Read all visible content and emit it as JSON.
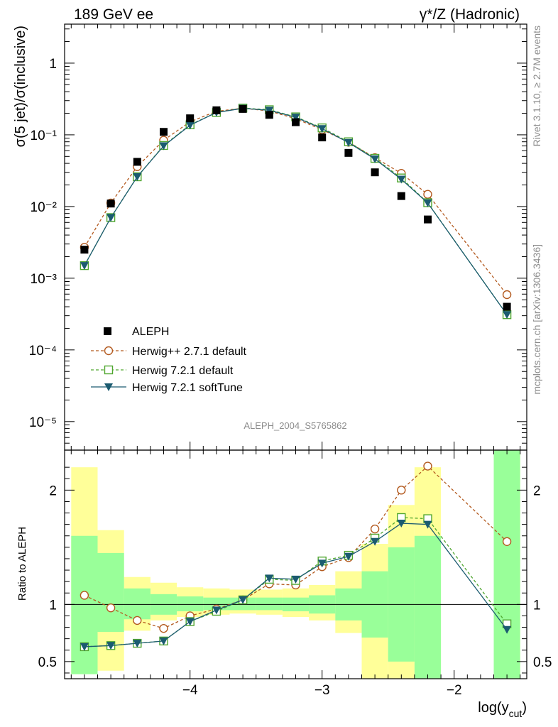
{
  "header": {
    "left": "189 GeV ee",
    "right": "γ*/Z (Hadronic)"
  },
  "side_text": {
    "rivet": "Rivet 3.1.10, ≥ 2.7M events",
    "mcplots": "mcplots.cern.ch [arXiv:1306.3436]"
  },
  "watermark": "ALEPH_2004_S5765862",
  "chart_data": {
    "type": "line",
    "title": "",
    "xlabel": "log(y_cut)",
    "ylabel": "σ(5 jet)/σ(inclusive)",
    "ratio_ylabel": "Ratio to ALEPH",
    "xlim": [
      -4.95,
      -1.45
    ],
    "ylim": [
      4e-06,
      3.5
    ],
    "ylog": true,
    "ratio_ylim": [
      0.35,
      2.35
    ],
    "legend_position": "lower-left",
    "x_ticks": [
      "−4",
      "−3",
      "−2"
    ],
    "y_ticks": [
      "10⁻⁵",
      "10⁻⁴",
      "10⁻³",
      "10⁻²",
      "10⁻¹",
      "1"
    ],
    "ratio_ticks": [
      "0.5",
      "1",
      "2"
    ],
    "x": [
      -4.8,
      -4.6,
      -4.4,
      -4.2,
      -4.0,
      -3.8,
      -3.6,
      -3.4,
      -3.2,
      -3.0,
      -2.8,
      -2.6,
      -2.4,
      -2.2,
      -1.6
    ],
    "series": [
      {
        "name": "ALEPH",
        "style": "data",
        "color": "#000000",
        "values": [
          0.0025,
          0.011,
          0.042,
          0.11,
          0.17,
          0.22,
          0.23,
          0.19,
          0.15,
          0.092,
          0.056,
          0.03,
          0.014,
          0.0066,
          0.0004
        ]
      },
      {
        "name": "Herwig++ 2.7.1 default",
        "style": "circle-dashed",
        "color": "#b35a1f",
        "values": [
          0.0027,
          0.0112,
          0.036,
          0.084,
          0.152,
          0.213,
          0.235,
          0.215,
          0.168,
          0.118,
          0.079,
          0.048,
          0.029,
          0.0148,
          0.00059
        ],
        "ratio": [
          1.08,
          0.97,
          0.86,
          0.79,
          0.9,
          0.96,
          1.04,
          1.18,
          1.17,
          1.33,
          1.41,
          1.66,
          2.0,
          2.21,
          1.55
        ]
      },
      {
        "name": "Herwig 7.2.1 default",
        "style": "square-dashed",
        "color": "#4fa62f",
        "values": [
          0.0015,
          0.007,
          0.026,
          0.071,
          0.138,
          0.205,
          0.236,
          0.224,
          0.178,
          0.125,
          0.08,
          0.047,
          0.025,
          0.0113,
          0.00031
        ],
        "ratio": [
          0.63,
          0.64,
          0.66,
          0.68,
          0.85,
          0.94,
          1.04,
          1.22,
          1.21,
          1.38,
          1.43,
          1.58,
          1.76,
          1.75,
          0.83
        ]
      },
      {
        "name": "Herwig 7.2.1 softTune",
        "style": "triangle-solid",
        "color": "#1b5b70",
        "values": [
          0.0015,
          0.007,
          0.026,
          0.07,
          0.136,
          0.205,
          0.234,
          0.22,
          0.176,
          0.122,
          0.078,
          0.046,
          0.024,
          0.0112,
          0.00031
        ],
        "ratio": [
          0.63,
          0.64,
          0.66,
          0.68,
          0.85,
          0.95,
          1.04,
          1.23,
          1.22,
          1.36,
          1.42,
          1.55,
          1.71,
          1.7,
          0.78
        ]
      }
    ],
    "ratio_bands": [
      {
        "x0": -4.9,
        "x1": -4.7,
        "yellow": [
          0.39,
          2.2
        ],
        "green": [
          0.39,
          1.6
        ]
      },
      {
        "x0": -4.7,
        "x1": -4.5,
        "yellow": [
          0.42,
          1.65
        ],
        "green": [
          0.76,
          1.45
        ]
      },
      {
        "x0": -4.5,
        "x1": -4.3,
        "yellow": [
          0.77,
          1.24
        ],
        "green": [
          0.87,
          1.14
        ]
      },
      {
        "x0": -4.3,
        "x1": -4.1,
        "yellow": [
          0.86,
          1.19
        ],
        "green": [
          0.91,
          1.09
        ]
      },
      {
        "x0": -4.1,
        "x1": -3.9,
        "yellow": [
          0.89,
          1.15
        ],
        "green": [
          0.94,
          1.07
        ]
      },
      {
        "x0": -3.9,
        "x1": -3.7,
        "yellow": [
          0.91,
          1.14
        ],
        "green": [
          0.95,
          1.06
        ]
      },
      {
        "x0": -3.7,
        "x1": -3.5,
        "yellow": [
          0.92,
          1.13
        ],
        "green": [
          0.95,
          1.06
        ]
      },
      {
        "x0": -3.5,
        "x1": -3.3,
        "yellow": [
          0.91,
          1.13
        ],
        "green": [
          0.95,
          1.06
        ]
      },
      {
        "x0": -3.3,
        "x1": -3.1,
        "yellow": [
          0.89,
          1.14
        ],
        "green": [
          0.94,
          1.06
        ]
      },
      {
        "x0": -3.1,
        "x1": -2.9,
        "yellow": [
          0.86,
          1.17
        ],
        "green": [
          0.92,
          1.08
        ]
      },
      {
        "x0": -2.9,
        "x1": -2.7,
        "yellow": [
          0.75,
          1.29
        ],
        "green": [
          0.86,
          1.14
        ]
      },
      {
        "x0": -2.7,
        "x1": -2.5,
        "yellow": [
          0.33,
          1.53
        ],
        "green": [
          0.71,
          1.29
        ]
      },
      {
        "x0": -2.5,
        "x1": -2.3,
        "yellow": [
          0.33,
          1.87
        ],
        "green": [
          0.5,
          1.5
        ]
      },
      {
        "x0": -2.3,
        "x1": -2.1,
        "yellow": [
          0.33,
          2.2
        ],
        "green": [
          0.33,
          1.6
        ]
      },
      {
        "x0": -1.7,
        "x1": -1.5,
        "yellow": [
          0.33,
          2.4
        ],
        "green": [
          0.33,
          2.4
        ]
      }
    ]
  }
}
